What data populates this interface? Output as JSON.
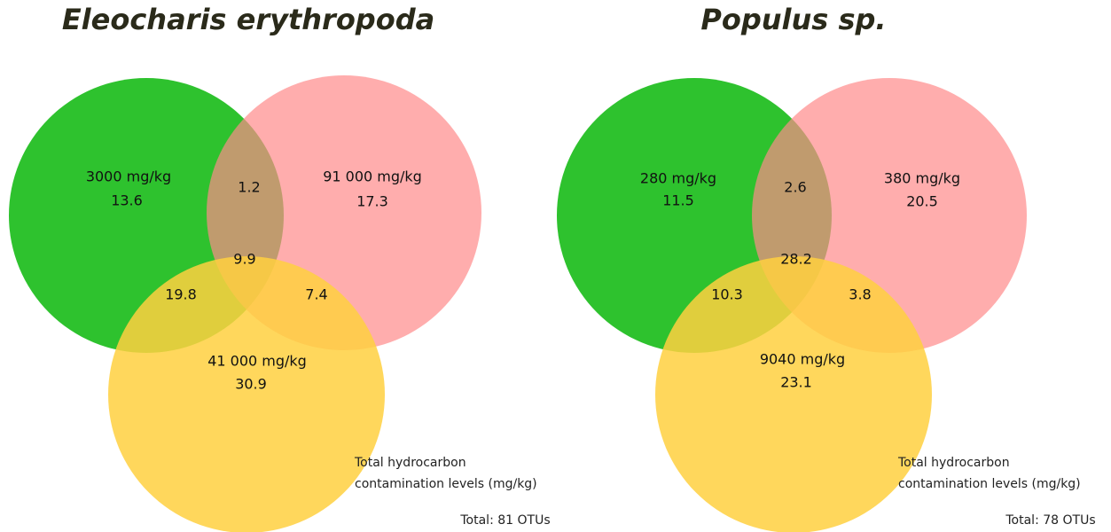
{
  "venns": [
    {
      "title": "Eleocharis erythropoda",
      "sets": [
        {
          "label": "3000 mg/kg",
          "value": 13.6
        },
        {
          "label": "91 000 mg/kg",
          "value": 17.3
        },
        {
          "label": "41 000 mg/kg",
          "value": 30.9
        }
      ],
      "overlaps": {
        "green_pink": 1.2,
        "all": 9.9,
        "green_yellow": 19.8,
        "pink_yellow": 7.4
      },
      "note": [
        "Total hydrocarbon",
        "contamination levels (mg/kg)"
      ],
      "total": "Total: 81 OTUs"
    },
    {
      "title": "Populus sp.",
      "sets": [
        {
          "label": "280 mg/kg",
          "value": 11.5
        },
        {
          "label": "380 mg/kg",
          "value": 20.5
        },
        {
          "label": "9040 mg/kg",
          "value": 23.1
        }
      ],
      "overlaps": {
        "green_pink": 2.6,
        "all": 28.2,
        "green_yellow": 10.3,
        "pink_yellow": 3.8
      },
      "note": [
        "Total hydrocarbon",
        "contamination levels (mg/kg)"
      ],
      "total": "Total: 78 OTUs"
    }
  ]
}
